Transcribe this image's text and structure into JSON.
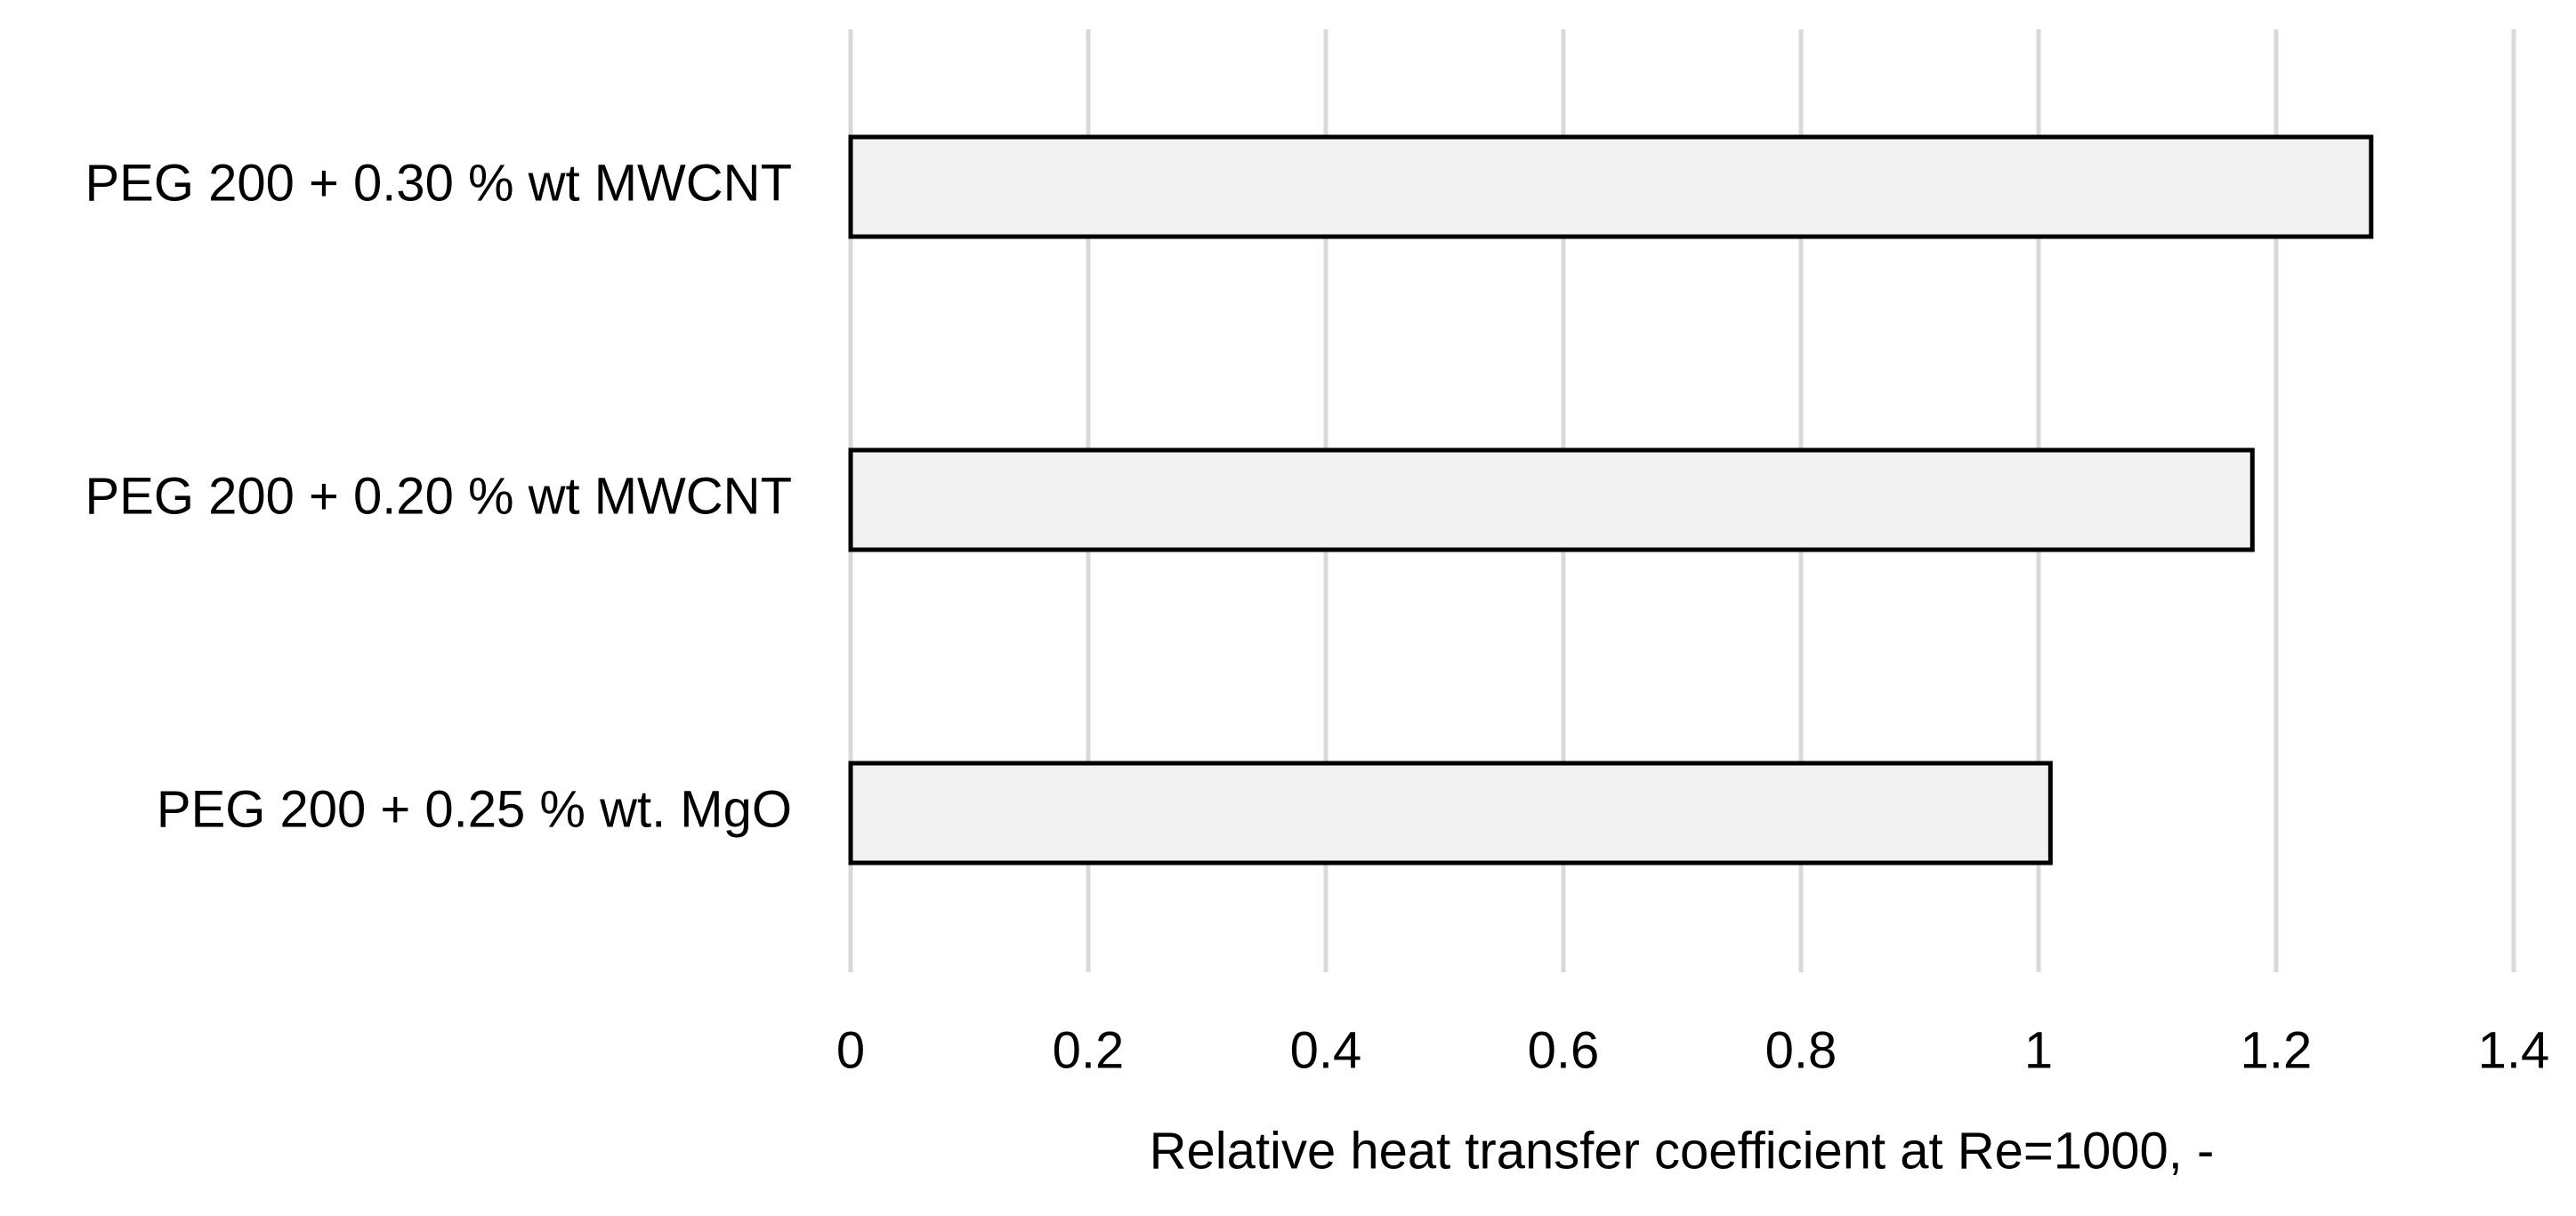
{
  "chart_data": {
    "type": "hbar",
    "x_label": "Relative heat transfer coefficient at Re=1000, -",
    "categories": [
      "PEG 200 + 0.30 % wt MWCNT",
      "PEG 200 + 0.20 % wt MWCNT",
      "PEG 200 + 0.25 % wt. MgO"
    ],
    "values": [
      1.28,
      1.18,
      1.01
    ],
    "color": "#f2f2f2",
    "edge_color": "#000000",
    "xlim": [
      0,
      1.4
    ],
    "xticks": [
      0,
      0.2,
      0.4,
      0.6,
      0.8,
      1,
      1.2,
      1.4
    ],
    "grid": true
  }
}
